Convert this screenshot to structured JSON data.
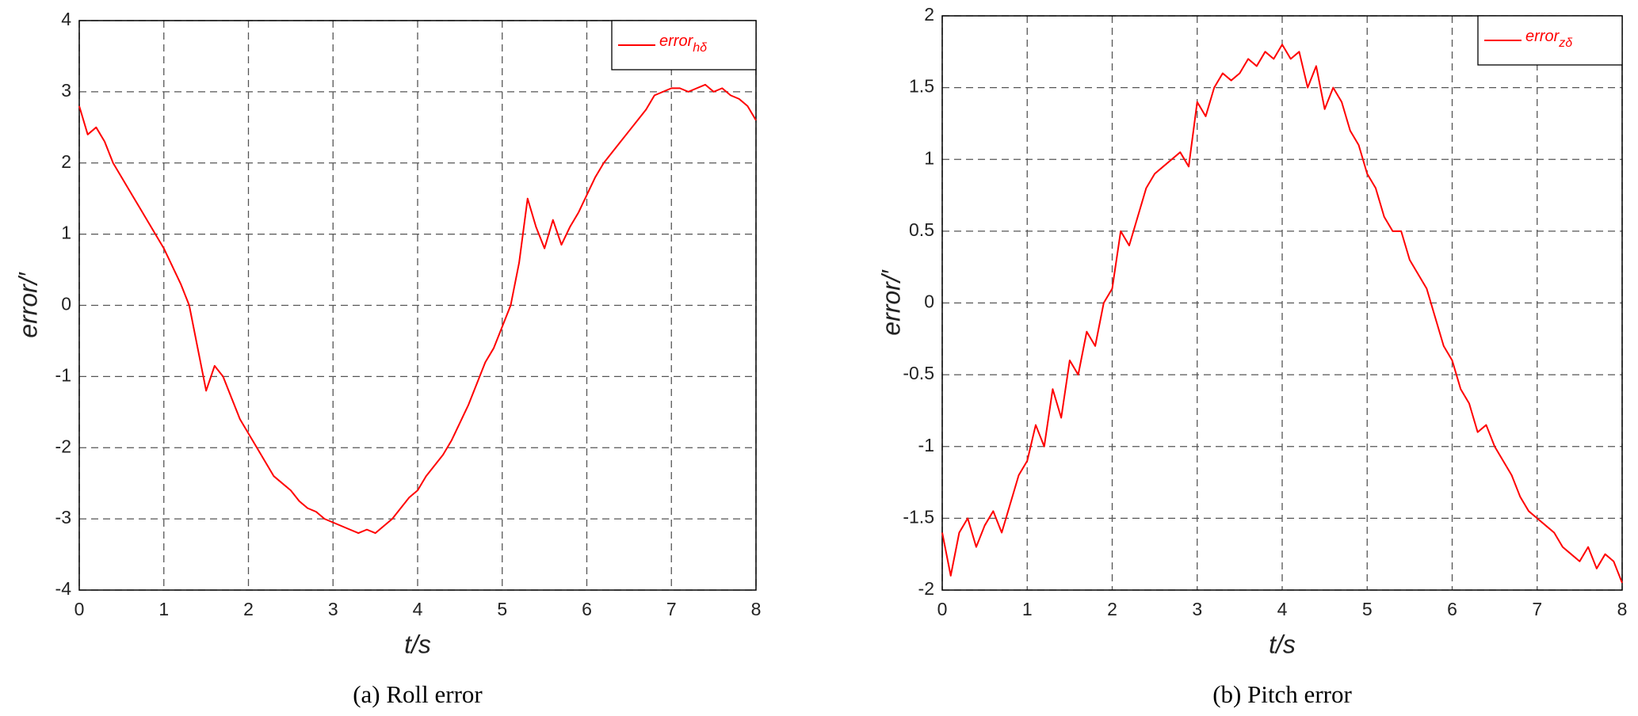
{
  "chart_data": [
    {
      "type": "line",
      "caption": "(a) Roll error",
      "xlabel": "t/s",
      "ylabel": "error/′",
      "xlim": [
        0,
        8
      ],
      "ylim": [
        -4,
        4
      ],
      "xticks": [
        0,
        1,
        2,
        3,
        4,
        5,
        6,
        7,
        8
      ],
      "yticks": [
        -4,
        -3,
        -2,
        -1,
        0,
        1,
        2,
        3,
        4
      ],
      "grid": true,
      "legend": "upper right",
      "x": [
        0,
        0.1,
        0.2,
        0.3,
        0.4,
        0.5,
        0.6,
        0.7,
        0.8,
        0.9,
        1,
        1.1,
        1.2,
        1.3,
        1.4,
        1.5,
        1.6,
        1.7,
        1.8,
        1.9,
        2,
        2.1,
        2.2,
        2.3,
        2.4,
        2.5,
        2.6,
        2.7,
        2.8,
        2.9,
        3,
        3.1,
        3.2,
        3.3,
        3.4,
        3.5,
        3.6,
        3.7,
        3.8,
        3.9,
        4,
        4.1,
        4.2,
        4.3,
        4.4,
        4.5,
        4.6,
        4.7,
        4.8,
        4.9,
        5,
        5.1,
        5.2,
        5.3,
        5.4,
        5.5,
        5.6,
        5.7,
        5.8,
        5.9,
        6,
        6.1,
        6.2,
        6.3,
        6.4,
        6.5,
        6.6,
        6.7,
        6.8,
        6.9,
        7,
        7.1,
        7.2,
        7.3,
        7.4,
        7.5,
        7.6,
        7.7,
        7.8,
        7.9,
        8
      ],
      "series": [
        {
          "name": "errorhδ",
          "color": "#ff0000",
          "values": [
            2.8,
            2.4,
            2.5,
            2.3,
            2.0,
            1.8,
            1.6,
            1.4,
            1.2,
            1.0,
            0.8,
            0.55,
            0.3,
            0.0,
            -0.6,
            -1.2,
            -0.85,
            -1.0,
            -1.3,
            -1.6,
            -1.8,
            -2.0,
            -2.2,
            -2.4,
            -2.5,
            -2.6,
            -2.75,
            -2.85,
            -2.9,
            -3.0,
            -3.05,
            -3.1,
            -3.15,
            -3.2,
            -3.15,
            -3.2,
            -3.1,
            -3.0,
            -2.85,
            -2.7,
            -2.6,
            -2.4,
            -2.25,
            -2.1,
            -1.9,
            -1.65,
            -1.4,
            -1.1,
            -0.8,
            -0.6,
            -0.3,
            0.0,
            0.6,
            1.5,
            1.1,
            0.8,
            1.2,
            0.85,
            1.1,
            1.3,
            1.55,
            1.8,
            2.0,
            2.15,
            2.3,
            2.45,
            2.6,
            2.75,
            2.95,
            3.0,
            3.05,
            3.05,
            3.0,
            3.05,
            3.1,
            3.0,
            3.05,
            2.95,
            2.9,
            2.8,
            2.6
          ]
        }
      ]
    },
    {
      "type": "line",
      "caption": "(b) Pitch error",
      "xlabel": "t/s",
      "ylabel": "error/′",
      "xlim": [
        0,
        8
      ],
      "ylim": [
        -2,
        2
      ],
      "xticks": [
        0,
        1,
        2,
        3,
        4,
        5,
        6,
        7,
        8
      ],
      "yticks": [
        -2,
        -1.5,
        -1,
        -0.5,
        0,
        0.5,
        1,
        1.5,
        2
      ],
      "grid": true,
      "legend": "upper right",
      "x": [
        0,
        0.1,
        0.2,
        0.3,
        0.4,
        0.5,
        0.6,
        0.7,
        0.8,
        0.9,
        1,
        1.1,
        1.2,
        1.3,
        1.4,
        1.5,
        1.6,
        1.7,
        1.8,
        1.9,
        2,
        2.1,
        2.2,
        2.3,
        2.4,
        2.5,
        2.6,
        2.7,
        2.8,
        2.9,
        3,
        3.1,
        3.2,
        3.3,
        3.4,
        3.5,
        3.6,
        3.7,
        3.8,
        3.9,
        4,
        4.1,
        4.2,
        4.3,
        4.4,
        4.5,
        4.6,
        4.7,
        4.8,
        4.9,
        5,
        5.1,
        5.2,
        5.3,
        5.4,
        5.5,
        5.6,
        5.7,
        5.8,
        5.9,
        6,
        6.1,
        6.2,
        6.3,
        6.4,
        6.5,
        6.6,
        6.7,
        6.8,
        6.9,
        7,
        7.1,
        7.2,
        7.3,
        7.4,
        7.5,
        7.6,
        7.7,
        7.8,
        7.9,
        8
      ],
      "series": [
        {
          "name": "errorzδ",
          "color": "#ff0000",
          "values": [
            -1.6,
            -1.9,
            -1.6,
            -1.5,
            -1.7,
            -1.55,
            -1.45,
            -1.6,
            -1.4,
            -1.2,
            -1.1,
            -0.85,
            -1.0,
            -0.6,
            -0.8,
            -0.4,
            -0.5,
            -0.2,
            -0.3,
            0.0,
            0.1,
            0.5,
            0.4,
            0.6,
            0.8,
            0.9,
            0.95,
            1.0,
            1.05,
            0.95,
            1.4,
            1.3,
            1.5,
            1.6,
            1.55,
            1.6,
            1.7,
            1.65,
            1.75,
            1.7,
            1.8,
            1.7,
            1.75,
            1.5,
            1.65,
            1.35,
            1.5,
            1.4,
            1.2,
            1.1,
            0.9,
            0.8,
            0.6,
            0.5,
            0.5,
            0.3,
            0.2,
            0.1,
            -0.1,
            -0.3,
            -0.4,
            -0.6,
            -0.7,
            -0.9,
            -0.85,
            -1.0,
            -1.1,
            -1.2,
            -1.35,
            -1.45,
            -1.5,
            -1.55,
            -1.6,
            -1.7,
            -1.75,
            -1.8,
            -1.7,
            -1.85,
            -1.75,
            -1.8,
            -1.95
          ]
        }
      ]
    }
  ]
}
